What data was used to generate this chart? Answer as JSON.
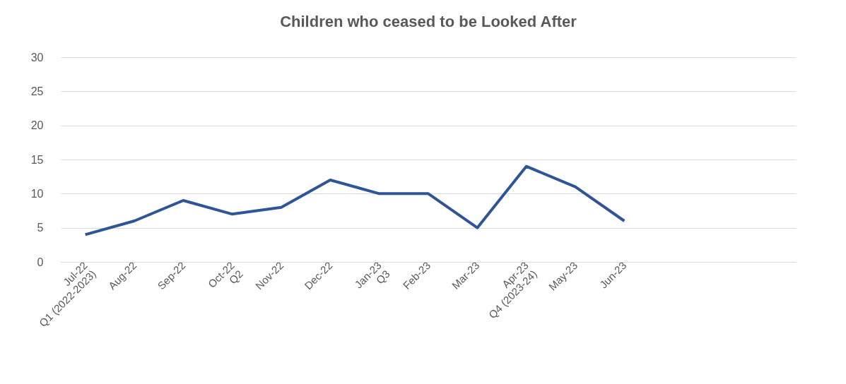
{
  "chart_data": {
    "type": "line",
    "title": "Children who ceased to be Looked After",
    "categories": [
      "Jul-22\nQ1 (2022-2023)",
      "Aug-22",
      "Sep-22",
      "Oct-22\nQ2",
      "Nov-22",
      "Dec-22",
      "Jan-23\nQ3",
      "Feb-23",
      "Mar-23",
      "Apr-23\nQ4 (2023-24)",
      "May-23",
      "Jun-23",
      null,
      null,
      null
    ],
    "series": [
      {
        "color": "#2f5597",
        "values": [
          4,
          6,
          9,
          7,
          8,
          12,
          10,
          10,
          5,
          14,
          11,
          6,
          null,
          null,
          null
        ]
      }
    ],
    "ylim": [
      0,
      30
    ],
    "yticks": [
      0,
      5,
      10,
      15,
      20,
      25,
      30
    ],
    "grid": "y",
    "marker": "none",
    "line_style": "solid"
  }
}
